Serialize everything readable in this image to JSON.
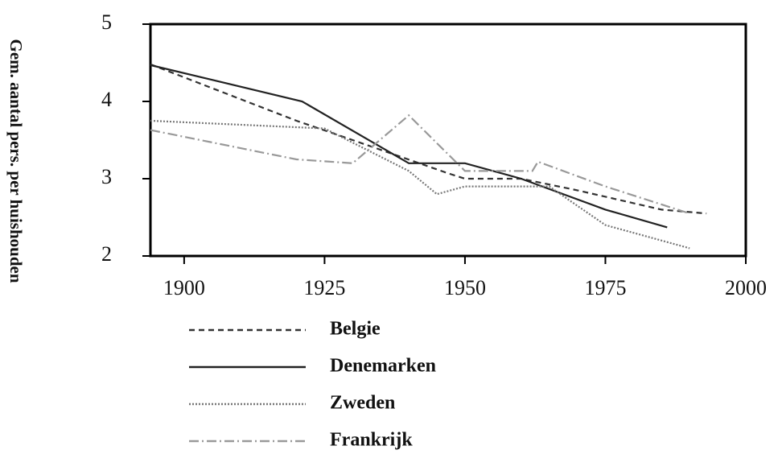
{
  "chart_data": {
    "type": "line",
    "y_label": "Gem. aantal pers. per huishouden",
    "xlim": [
      1894,
      2000
    ],
    "ylim": [
      2,
      5
    ],
    "xticks": [
      1900,
      1925,
      1950,
      1975,
      2000
    ],
    "yticks": [
      2,
      3,
      4,
      5
    ],
    "series": [
      {
        "name": "Belgie",
        "color": "#333333",
        "dash": "7,5",
        "x": [
          1894,
          1920,
          1930,
          1947,
          1950,
          1960,
          1970,
          1985,
          1993
        ],
        "values": [
          4.48,
          3.75,
          3.5,
          3.07,
          3.0,
          3.0,
          2.85,
          2.6,
          2.55
        ]
      },
      {
        "name": "Denemarken",
        "color": "#222222",
        "dash": "none",
        "x": [
          1894,
          1921,
          1940,
          1950,
          1960,
          1975,
          1986
        ],
        "values": [
          4.47,
          4.0,
          3.2,
          3.2,
          3.0,
          2.6,
          2.37
        ]
      },
      {
        "name": "Zweden",
        "color": "#777777",
        "dash": "2,2",
        "x": [
          1894,
          1925,
          1940,
          1945,
          1950,
          1965,
          1975,
          1990
        ],
        "values": [
          3.75,
          3.65,
          3.1,
          2.8,
          2.9,
          2.9,
          2.4,
          2.1
        ]
      },
      {
        "name": "Frankrijk",
        "color": "#999999",
        "dash": "12,4,2,4",
        "x": [
          1894,
          1920,
          1930,
          1940,
          1950,
          1962,
          1963,
          1975,
          1990
        ],
        "values": [
          3.63,
          3.25,
          3.2,
          3.82,
          3.1,
          3.1,
          3.22,
          2.9,
          2.55
        ]
      }
    ]
  }
}
